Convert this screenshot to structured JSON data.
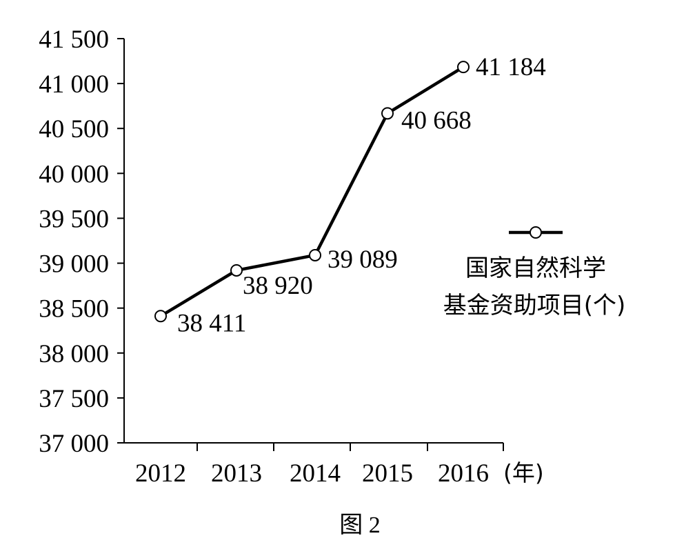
{
  "chart_data": {
    "type": "line",
    "categories": [
      "2012",
      "2013",
      "2014",
      "2015",
      "2016"
    ],
    "x_unit": "(年)",
    "y_ticks": [
      "37 000",
      "37 500",
      "38 000",
      "38 500",
      "39 000",
      "39 500",
      "40 000",
      "40 500",
      "41 000",
      "41 500"
    ],
    "ylim": [
      37000,
      41500
    ],
    "series": [
      {
        "name_lines": [
          "国家自然科学",
          "基金资助项目(个)"
        ],
        "values": [
          38411,
          38920,
          39089,
          40668,
          41184
        ],
        "labels": [
          "38 411",
          "38 920",
          "39 089",
          "40 668",
          "41 184"
        ]
      }
    ],
    "legend_position": "right",
    "grid": false,
    "caption": "图 2"
  }
}
